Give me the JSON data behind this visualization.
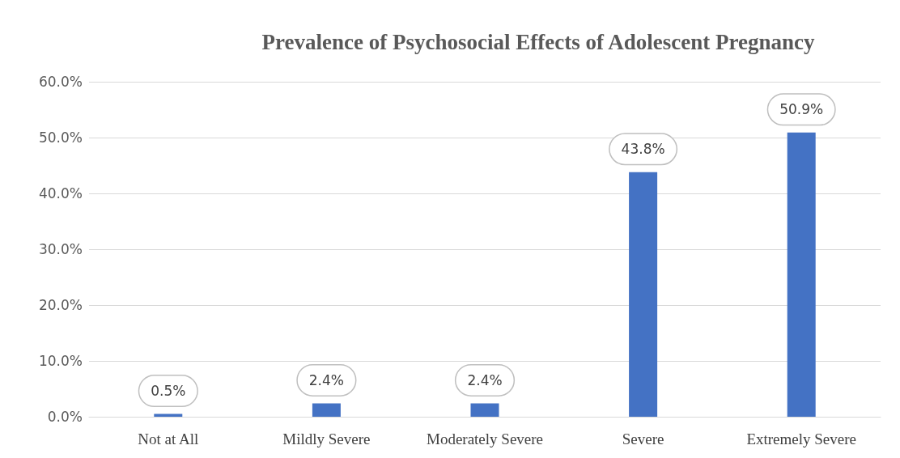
{
  "chart_data": {
    "type": "bar",
    "title": "Prevalence of Psychosocial Effects of Adolescent Pregnancy",
    "categories": [
      "Not at All",
      "Mildly Severe",
      "Moderately Severe",
      "Severe",
      "Extremely Severe"
    ],
    "values": [
      0.5,
      2.4,
      2.4,
      43.8,
      50.9
    ],
    "value_labels": [
      "0.5%",
      "2.4%",
      "2.4%",
      "43.8%",
      "50.9%"
    ],
    "color": "#4472c4",
    "ylim": [
      0,
      60
    ],
    "yticks": [
      {
        "value": 0,
        "label": "0.0%"
      },
      {
        "value": 10,
        "label": "10.0%"
      },
      {
        "value": 20,
        "label": "20.0%"
      },
      {
        "value": 30,
        "label": "30.0%"
      },
      {
        "value": 40,
        "label": "40.0%"
      },
      {
        "value": 50,
        "label": "50.0%"
      },
      {
        "value": 60,
        "label": "60.0%"
      }
    ],
    "grid": true
  }
}
